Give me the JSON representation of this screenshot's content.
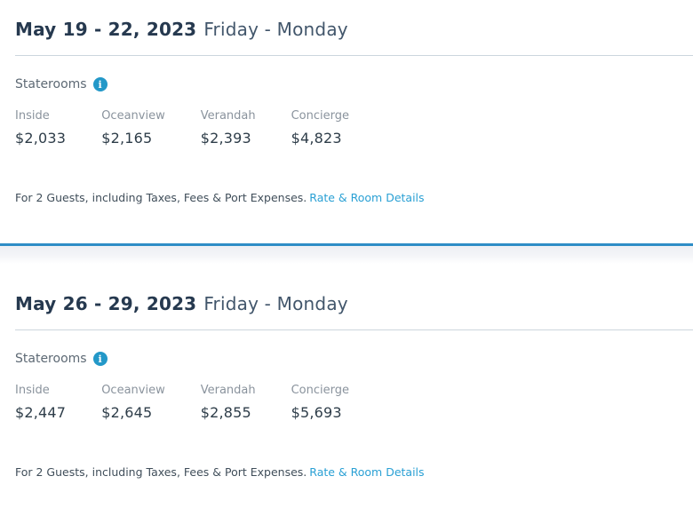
{
  "colors": {
    "title": "#26394f",
    "weekday": "#42566b",
    "label_gray": "#8a939d",
    "price_dark": "#2e3d49",
    "link_teal": "#2aa0d4",
    "info_icon_bg": "#2398c8",
    "divider_blue": "#2e8dc6",
    "rule_gray": "#ccd6dd"
  },
  "cards": [
    {
      "date_range": "May 19 - 22, 2023",
      "weekday_range": "Friday - Monday",
      "staterooms_label": "Staterooms",
      "info_icon_glyph": "i",
      "categories": [
        {
          "label": "Inside",
          "price": "$2,033"
        },
        {
          "label": "Oceanview",
          "price": "$2,165"
        },
        {
          "label": "Verandah",
          "price": "$2,393"
        },
        {
          "label": "Concierge",
          "price": "$4,823"
        }
      ],
      "disclaimer_text": "For 2 Guests, including Taxes, Fees & Port Expenses.",
      "details_link_label": "Rate & Room Details"
    },
    {
      "date_range": "May 26 - 29, 2023",
      "weekday_range": "Friday - Monday",
      "staterooms_label": "Staterooms",
      "info_icon_glyph": "i",
      "categories": [
        {
          "label": "Inside",
          "price": "$2,447"
        },
        {
          "label": "Oceanview",
          "price": "$2,645"
        },
        {
          "label": "Verandah",
          "price": "$2,855"
        },
        {
          "label": "Concierge",
          "price": "$5,693"
        }
      ],
      "disclaimer_text": "For 2 Guests, including Taxes, Fees & Port Expenses.",
      "details_link_label": "Rate & Room Details"
    }
  ]
}
